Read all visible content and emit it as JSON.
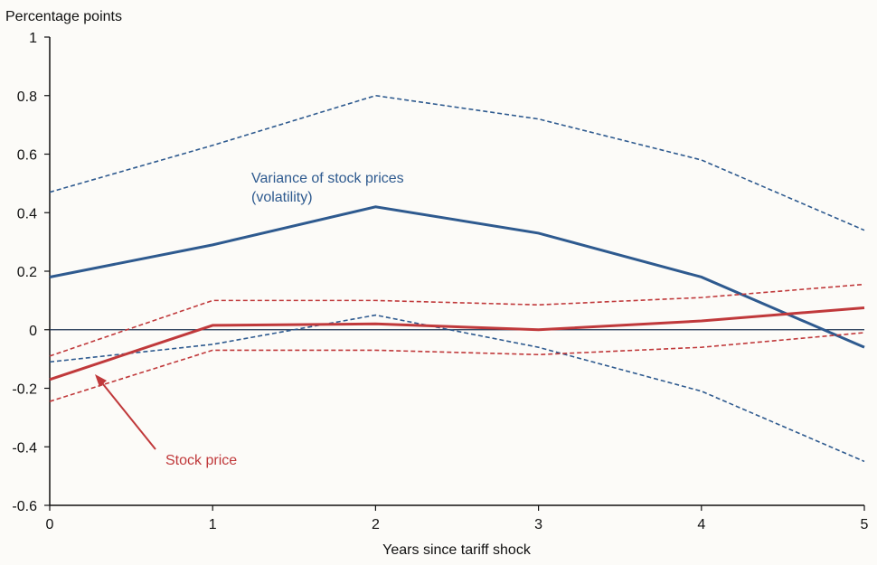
{
  "chart_data": {
    "type": "line",
    "ylabel": "Percentage points",
    "xlabel": "Years since tariff shock",
    "xlim": [
      0,
      5
    ],
    "ylim": [
      -0.6,
      1
    ],
    "x_ticks": [
      "0",
      "1",
      "2",
      "3",
      "4",
      "5"
    ],
    "y_ticks": [
      "1",
      "0.8",
      "0.6",
      "0.4",
      "0.2",
      "0",
      "-0.2",
      "-0.4",
      "-0.6"
    ],
    "x": [
      0,
      1,
      2,
      3,
      4,
      5
    ],
    "grid": false,
    "series": [
      {
        "name": "Variance of stock prices (volatility)",
        "role": "estimate",
        "color": "#2e5a8f",
        "style": "solid",
        "values": [
          0.18,
          0.29,
          0.42,
          0.33,
          0.18,
          -0.06
        ]
      },
      {
        "role": "upper band",
        "color": "#2e5a8f",
        "style": "dashed",
        "values": [
          0.47,
          0.63,
          0.8,
          0.72,
          0.58,
          0.34
        ]
      },
      {
        "role": "lower band",
        "color": "#2e5a8f",
        "style": "dashed",
        "values": [
          -0.11,
          -0.05,
          0.05,
          -0.06,
          -0.21,
          -0.45
        ]
      },
      {
        "name": "Stock price",
        "role": "estimate",
        "color": "#c0393b",
        "style": "solid",
        "values": [
          -0.17,
          0.015,
          0.02,
          0.0,
          0.03,
          0.075
        ]
      },
      {
        "role": "upper band",
        "color": "#c0393b",
        "style": "dashed",
        "values": [
          -0.09,
          0.1,
          0.1,
          0.085,
          0.11,
          0.155
        ]
      },
      {
        "role": "lower band",
        "color": "#c0393b",
        "style": "dashed",
        "values": [
          -0.245,
          -0.07,
          -0.07,
          -0.085,
          -0.06,
          -0.01
        ]
      }
    ],
    "annotations": [
      {
        "lines": [
          "Variance of stock prices",
          "(volatility)"
        ],
        "color": "#2e5a8f"
      },
      {
        "lines": [
          "Stock price"
        ],
        "color": "#c0393b",
        "arrow": true
      }
    ]
  }
}
